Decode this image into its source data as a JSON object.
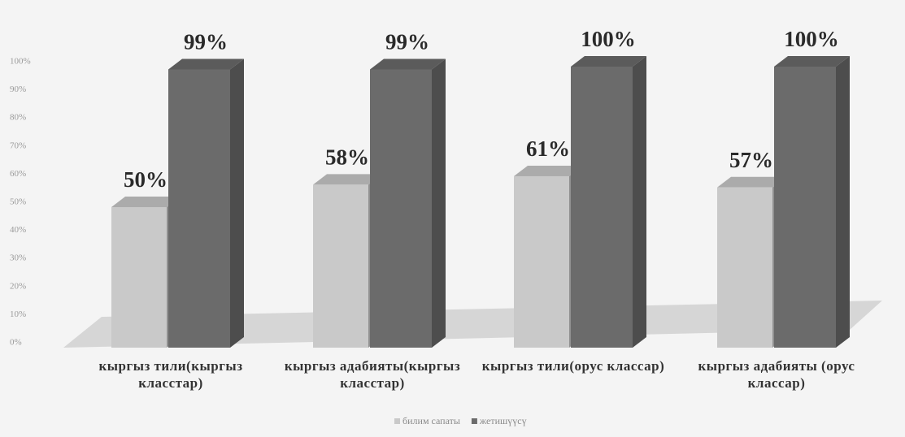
{
  "chart_data": {
    "type": "bar3d",
    "categories": [
      "кыргыз тили(кыргыз класстар)",
      "кыргыз адабияты(кыргыз класстар)",
      "кыргыз тили(орус классар)",
      "кыргыз адабияты (орус классар)"
    ],
    "series": [
      {
        "name": "билим сапаты",
        "color": "#c9c9c9",
        "values": [
          50,
          58,
          61,
          57
        ],
        "value_labels": [
          "50%",
          "58%",
          "61%",
          "57%"
        ]
      },
      {
        "name": "жетишүүсү",
        "color": "#6b6b6b",
        "values": [
          99,
          99,
          100,
          100
        ],
        "value_labels": [
          "99%",
          "99%",
          "100%",
          "100%"
        ]
      }
    ],
    "ylim": [
      0,
      100
    ],
    "yticks": [
      {
        "value": 0,
        "label": "0%"
      },
      {
        "value": 10,
        "label": "10%"
      },
      {
        "value": 20,
        "label": "20%"
      },
      {
        "value": 30,
        "label": "30%"
      },
      {
        "value": 40,
        "label": "40%"
      },
      {
        "value": 50,
        "label": "50%"
      },
      {
        "value": 60,
        "label": "60%"
      },
      {
        "value": 70,
        "label": "70%"
      },
      {
        "value": 80,
        "label": "80%"
      },
      {
        "value": 90,
        "label": "90%"
      },
      {
        "value": 100,
        "label": "100%"
      }
    ],
    "legend": "bottom"
  }
}
